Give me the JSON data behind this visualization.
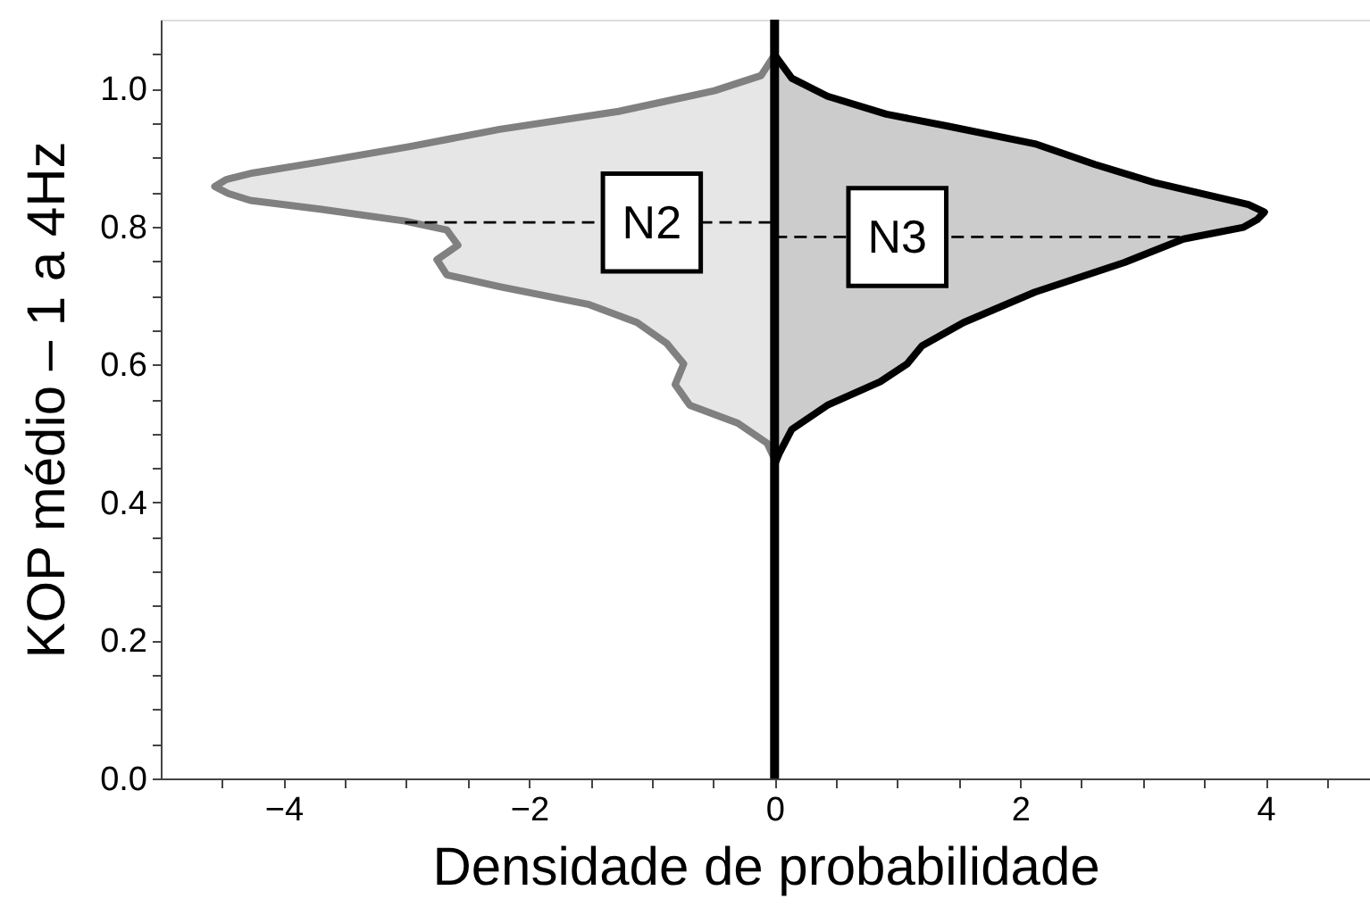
{
  "chart_data": {
    "type": "area",
    "orientation": "horizontal",
    "xlabel": "Densidade de probabilidade",
    "ylabel": "KOP médio – 1 a 4Hz",
    "xlim": [
      -5,
      4.85
    ],
    "ylim": [
      0,
      1.1
    ],
    "xticks": [
      {
        "value": -4.5,
        "label": null
      },
      {
        "value": -4,
        "label": "−4"
      },
      {
        "value": -3.5,
        "label": null
      },
      {
        "value": -3,
        "label": null
      },
      {
        "value": -2.5,
        "label": null
      },
      {
        "value": -2,
        "label": "−2"
      },
      {
        "value": -1.5,
        "label": null
      },
      {
        "value": -1,
        "label": null
      },
      {
        "value": -0.5,
        "label": null
      },
      0,
      {
        "value": 0.5,
        "label": null
      },
      {
        "value": 1,
        "label": null
      },
      {
        "value": 1.5,
        "label": null
      },
      2,
      {
        "value": 2.5,
        "label": null
      },
      {
        "value": 3,
        "label": null
      },
      {
        "value": 3.5,
        "label": null
      },
      4,
      {
        "value": 4.5,
        "label": null
      }
    ],
    "yticks": [
      {
        "value": 0,
        "label": "0.0"
      },
      {
        "value": 0.05,
        "label": null
      },
      {
        "value": 0.1,
        "label": null
      },
      {
        "value": 0.15,
        "label": null
      },
      0.2,
      {
        "value": 0.25,
        "label": null
      },
      {
        "value": 0.3,
        "label": null
      },
      {
        "value": 0.35,
        "label": null
      },
      0.4,
      {
        "value": 0.45,
        "label": null
      },
      {
        "value": 0.5,
        "label": null
      },
      {
        "value": 0.55,
        "label": null
      },
      0.6,
      {
        "value": 0.65,
        "label": null
      },
      {
        "value": 0.7,
        "label": null
      },
      {
        "value": 0.75,
        "label": null
      },
      0.8,
      {
        "value": 0.85,
        "label": null
      },
      {
        "value": 0.9,
        "label": null
      },
      {
        "value": 0.95,
        "label": null
      },
      {
        "value": 1,
        "label": "1.0"
      },
      {
        "value": 1.05,
        "label": null
      }
    ],
    "grid": false,
    "series": [
      {
        "color": "#808080",
        "x": [
          1.049,
          1.019,
          0.997,
          0.967,
          0.941,
          0.916,
          0.894,
          0.877,
          0.868,
          0.858,
          0.848,
          0.838,
          0.825,
          0.808,
          0.795,
          0.773,
          0.752,
          0.73,
          0.713,
          0.687,
          0.661,
          0.631,
          0.601,
          0.571,
          0.541,
          0.515,
          0.486,
          0.463
        ],
        "values": [
          0,
          -0.11,
          -0.49,
          -1.27,
          -2.24,
          -2.97,
          -3.69,
          -4.27,
          -4.47,
          -4.56,
          -4.45,
          -4.27,
          -3.69,
          -3.01,
          -2.67,
          -2.58,
          -2.75,
          -2.67,
          -2.24,
          -1.51,
          -1.12,
          -0.88,
          -0.74,
          -0.81,
          -0.69,
          -0.3,
          -0.06,
          0
        ]
      },
      {
        "color": "#000000",
        "x": [
          1.049,
          1.015,
          0.989,
          0.963,
          0.946,
          0.92,
          0.89,
          0.864,
          0.842,
          0.832,
          0.821,
          0.81,
          0.799,
          0.782,
          0.748,
          0.705,
          0.661,
          0.627,
          0.601,
          0.575,
          0.541,
          0.506,
          0.472,
          0.455
        ],
        "values": [
          0,
          0.14,
          0.43,
          0.91,
          1.4,
          2.12,
          2.61,
          3.09,
          3.62,
          3.86,
          3.99,
          3.93,
          3.82,
          3.33,
          2.85,
          2.12,
          1.54,
          1.2,
          1.08,
          0.86,
          0.43,
          0.14,
          0.04,
          0
        ]
      },
      {
        "type": "line",
        "line_style": "dashed",
        "color": "#000000",
        "x": [
          0.806,
          0.806
        ],
        "values": [
          -3.01,
          0
        ]
      },
      {
        "type": "line",
        "line_style": "dashed",
        "color": "#000000",
        "x": [
          0.785,
          0.785
        ],
        "values": [
          0,
          3.38
        ]
      }
    ],
    "ref_lines": [
      {
        "axis": "x",
        "value": 0,
        "color": "#000000"
      }
    ],
    "annotations": [
      {
        "text": "N2",
        "x": -1.0,
        "y": 0.806
      },
      {
        "text": "N3",
        "x": 1.0,
        "y": 0.785
      }
    ]
  }
}
